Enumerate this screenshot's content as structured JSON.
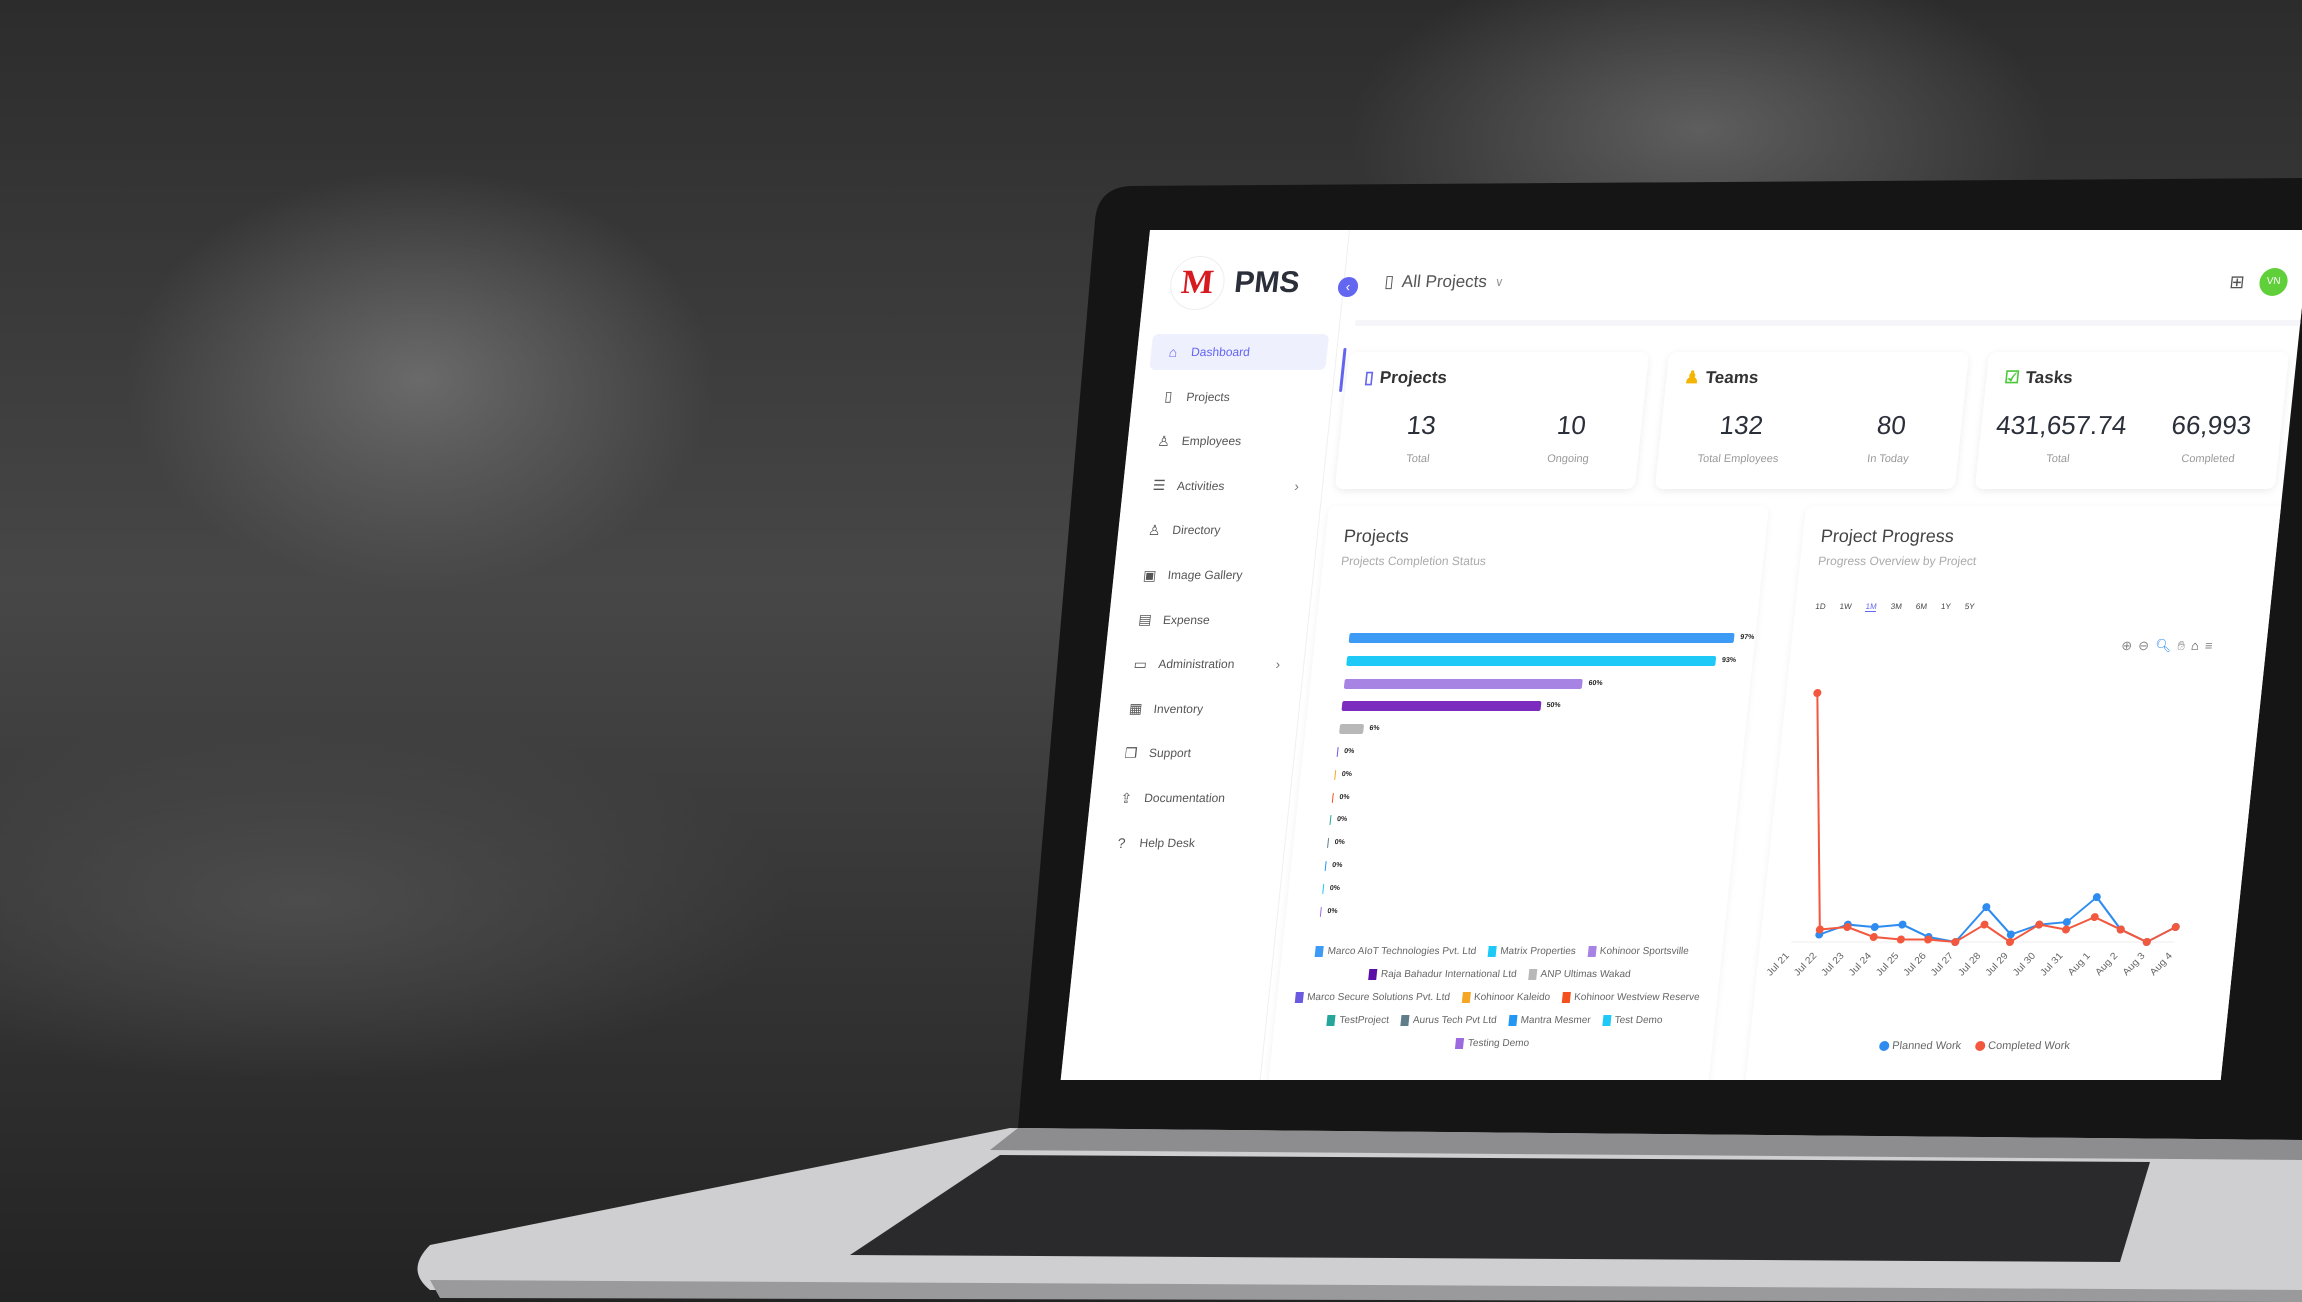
{
  "app": {
    "logo_letter": "M",
    "name": "PMS"
  },
  "sidebar": {
    "items": [
      {
        "label": "Dashboard",
        "icon": "home-icon",
        "active": true
      },
      {
        "label": "Projects",
        "icon": "clipboard-icon"
      },
      {
        "label": "Employees",
        "icon": "user-icon"
      },
      {
        "label": "Activities",
        "icon": "list-icon",
        "chevron": true
      },
      {
        "label": "Directory",
        "icon": "users-icon"
      },
      {
        "label": "Image Gallery",
        "icon": "image-icon"
      },
      {
        "label": "Expense",
        "icon": "receipt-icon"
      },
      {
        "label": "Administration",
        "icon": "archive-icon",
        "chevron": true
      },
      {
        "label": "Inventory",
        "icon": "store-icon"
      },
      {
        "label": "Support",
        "icon": "copy-icon"
      },
      {
        "label": "Documentation",
        "icon": "doc-upload-icon"
      },
      {
        "label": "Help Desk",
        "icon": "question-icon"
      }
    ]
  },
  "header": {
    "project_select": "All Projects",
    "avatar_initials": "VN"
  },
  "cards": [
    {
      "title": "Projects",
      "icon": "clipboard-icon",
      "icon_color": "#6366f1",
      "stats": [
        {
          "value": "13",
          "label": "Total"
        },
        {
          "value": "10",
          "label": "Ongoing"
        }
      ]
    },
    {
      "title": "Teams",
      "icon": "person-icon",
      "icon_color": "#f5b400",
      "stats": [
        {
          "value": "132",
          "label": "Total Employees"
        },
        {
          "value": "80",
          "label": "In Today"
        }
      ]
    },
    {
      "title": "Tasks",
      "icon": "check-calendar-icon",
      "icon_color": "#4cc93a",
      "stats": [
        {
          "value": "431,657.74",
          "label": "Total"
        },
        {
          "value": "66,993",
          "label": "Completed"
        }
      ]
    }
  ],
  "projects_panel": {
    "title": "Projects",
    "subtitle": "Projects Completion Status"
  },
  "progress_panel": {
    "title": "Project Progress",
    "subtitle": "Progress Overview by Project",
    "ranges": [
      "1D",
      "1W",
      "1M",
      "3M",
      "6M",
      "1Y",
      "5Y"
    ],
    "selected_range": "1M"
  },
  "chart_data": [
    {
      "type": "bar",
      "orientation": "horizontal",
      "title": "Projects",
      "subtitle": "Projects Completion Status",
      "values": [
        97,
        93,
        60,
        50,
        6,
        0,
        0,
        0,
        0,
        0,
        0,
        0,
        0
      ],
      "labels": [
        "97%",
        "93%",
        "60%",
        "50%",
        "6%",
        "0%",
        "0%",
        "0%",
        "0%",
        "0%",
        "0%",
        "0%",
        "0%"
      ],
      "colors": [
        "#3d9bf5",
        "#1ec8f7",
        "#a784e3",
        "#7b2bbd",
        "#b8b8b8",
        "#6a5ae0",
        "#f5a623",
        "#f4511e",
        "#26a69a",
        "#607d8b",
        "#2196f3",
        "#1ec8f7",
        "#9c6ade"
      ],
      "xlim": [
        0,
        100
      ],
      "legend_position": "bottom",
      "legend": [
        {
          "name": "Marco AIoT Technologies Pvt. Ltd",
          "color": "#3d9bf5"
        },
        {
          "name": "Matrix Properties",
          "color": "#1ec8f7"
        },
        {
          "name": "Kohinoor Sportsville",
          "color": "#a784e3"
        },
        {
          "name": "Raja Bahadur International Ltd",
          "color": "#5b0da8"
        },
        {
          "name": "ANP Ultimas Wakad",
          "color": "#b8b8b8"
        },
        {
          "name": "Marco Secure Solutions Pvt. Ltd",
          "color": "#6a5ae0"
        },
        {
          "name": "Kohinoor Kaleido",
          "color": "#f5a623"
        },
        {
          "name": "Kohinoor Westview Reserve",
          "color": "#f4511e"
        },
        {
          "name": "TestProject",
          "color": "#26a69a"
        },
        {
          "name": "Aurus Tech Pvt Ltd",
          "color": "#607d8b"
        },
        {
          "name": "Mantra Mesmer",
          "color": "#2196f3"
        },
        {
          "name": "Test Demo",
          "color": "#1ec8f7"
        },
        {
          "name": "Testing Demo",
          "color": "#9c6ade"
        }
      ]
    },
    {
      "type": "line",
      "title": "Project Progress",
      "subtitle": "Progress Overview by Project",
      "x": [
        "Jul 21",
        "Jul 22",
        "Jul 23",
        "Jul 24",
        "Jul 25",
        "Jul 26",
        "Jul 27",
        "Jul 28",
        "Jul 29",
        "Jul 30",
        "Jul 31",
        "Aug 1",
        "Aug 2",
        "Aug 3",
        "Aug 4"
      ],
      "series": [
        {
          "name": "Planned Work",
          "color": "#2e8cf0",
          "values": [
            null,
            3,
            7,
            6,
            7,
            2,
            0,
            14,
            3,
            7,
            8,
            18,
            5,
            0,
            6
          ]
        },
        {
          "name": "Completed Work",
          "color": "#f2583e",
          "values": [
            100,
            5,
            6,
            2,
            1,
            1,
            0,
            7,
            0,
            7,
            5,
            10,
            5,
            0,
            6
          ]
        }
      ],
      "ylim": [
        0,
        100
      ],
      "grid": false,
      "legend_position": "bottom"
    }
  ]
}
